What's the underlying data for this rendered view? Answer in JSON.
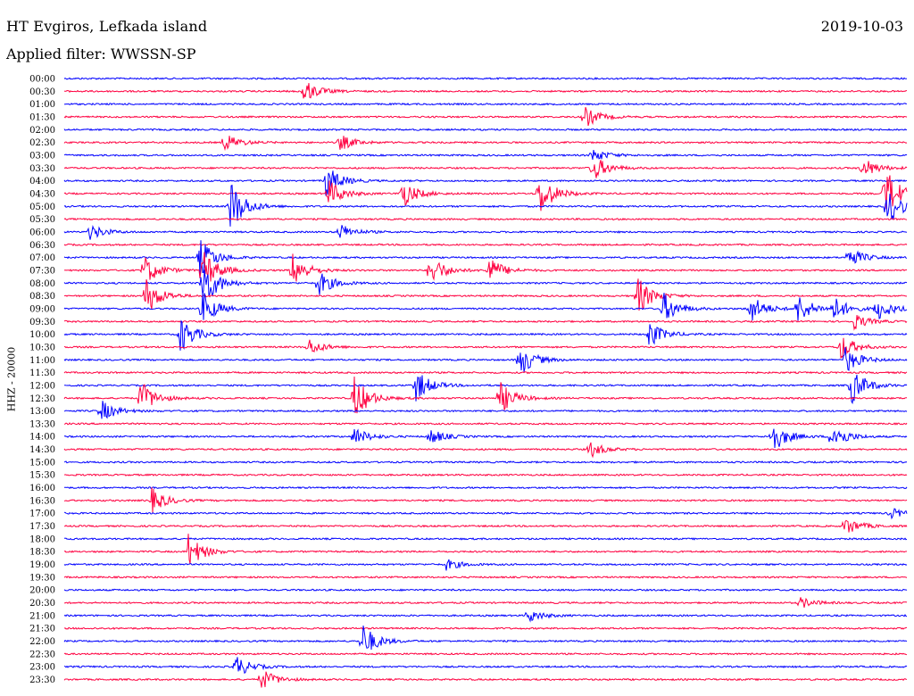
{
  "header": {
    "station": "HT Evgiros, Lefkada island",
    "date": "2019-10-03",
    "filter": "Applied filter: WWSSN-SP"
  },
  "chart_data": {
    "type": "line",
    "ylabel": "HHZ - 20000",
    "colors": [
      "#0000ff",
      "#ff0040"
    ],
    "rows": [
      "00:00",
      "00:30",
      "01:00",
      "01:30",
      "02:00",
      "02:30",
      "03:00",
      "03:30",
      "04:00",
      "04:30",
      "05:00",
      "05:30",
      "06:00",
      "06:30",
      "07:00",
      "07:30",
      "08:00",
      "08:30",
      "09:00",
      "09:30",
      "10:00",
      "10:30",
      "11:00",
      "11:30",
      "12:00",
      "12:30",
      "13:00",
      "13:30",
      "14:00",
      "14:30",
      "15:00",
      "15:30",
      "16:00",
      "16:30",
      "17:00",
      "17:30",
      "18:00",
      "18:30",
      "19:00",
      "19:30",
      "20:00",
      "20:30",
      "21:00",
      "21:30",
      "22:00",
      "22:30",
      "23:00",
      "23:30"
    ],
    "x_range_minutes": [
      0,
      30
    ],
    "events": [
      {
        "row": 1,
        "minute": 8.5,
        "amp": 0.9
      },
      {
        "row": 3,
        "minute": 18.5,
        "amp": 0.8
      },
      {
        "row": 5,
        "minute": 5.7,
        "amp": 0.7
      },
      {
        "row": 5,
        "minute": 9.8,
        "amp": 0.6
      },
      {
        "row": 6,
        "minute": 18.8,
        "amp": 0.5
      },
      {
        "row": 7,
        "minute": 18.8,
        "amp": 1.0
      },
      {
        "row": 7,
        "minute": 28.4,
        "amp": 0.8
      },
      {
        "row": 8,
        "minute": 9.3,
        "amp": 1.2
      },
      {
        "row": 9,
        "minute": 9.4,
        "amp": 1.0
      },
      {
        "row": 9,
        "minute": 12.0,
        "amp": 1.1
      },
      {
        "row": 9,
        "minute": 16.9,
        "amp": 1.6
      },
      {
        "row": 9,
        "minute": 29.2,
        "amp": 2.0
      },
      {
        "row": 10,
        "minute": 5.9,
        "amp": 2.0
      },
      {
        "row": 10,
        "minute": 29.3,
        "amp": 1.4
      },
      {
        "row": 12,
        "minute": 0.9,
        "amp": 0.6
      },
      {
        "row": 12,
        "minute": 9.8,
        "amp": 0.6
      },
      {
        "row": 14,
        "minute": 4.8,
        "amp": 1.5
      },
      {
        "row": 14,
        "minute": 27.9,
        "amp": 0.8
      },
      {
        "row": 15,
        "minute": 2.8,
        "amp": 1.2
      },
      {
        "row": 15,
        "minute": 4.9,
        "amp": 1.6
      },
      {
        "row": 15,
        "minute": 8.1,
        "amp": 1.3
      },
      {
        "row": 15,
        "minute": 13.0,
        "amp": 1.2
      },
      {
        "row": 15,
        "minute": 15.1,
        "amp": 1.0
      },
      {
        "row": 16,
        "minute": 4.9,
        "amp": 2.0
      },
      {
        "row": 16,
        "minute": 9.0,
        "amp": 1.0
      },
      {
        "row": 17,
        "minute": 2.9,
        "amp": 1.4
      },
      {
        "row": 17,
        "minute": 20.4,
        "amp": 1.4
      },
      {
        "row": 18,
        "minute": 4.9,
        "amp": 1.3
      },
      {
        "row": 18,
        "minute": 21.3,
        "amp": 1.2
      },
      {
        "row": 18,
        "minute": 24.4,
        "amp": 1.1
      },
      {
        "row": 18,
        "minute": 26.1,
        "amp": 1.1
      },
      {
        "row": 18,
        "minute": 27.3,
        "amp": 1.0
      },
      {
        "row": 18,
        "minute": 28.9,
        "amp": 0.9
      },
      {
        "row": 19,
        "minute": 28.1,
        "amp": 0.6
      },
      {
        "row": 20,
        "minute": 4.1,
        "amp": 1.4
      },
      {
        "row": 20,
        "minute": 20.8,
        "amp": 1.0
      },
      {
        "row": 21,
        "minute": 8.7,
        "amp": 0.6
      },
      {
        "row": 21,
        "minute": 27.6,
        "amp": 1.0
      },
      {
        "row": 22,
        "minute": 16.2,
        "amp": 1.2
      },
      {
        "row": 22,
        "minute": 27.8,
        "amp": 1.0
      },
      {
        "row": 24,
        "minute": 12.5,
        "amp": 1.2
      },
      {
        "row": 24,
        "minute": 28.0,
        "amp": 1.4
      },
      {
        "row": 25,
        "minute": 2.7,
        "amp": 1.3
      },
      {
        "row": 25,
        "minute": 10.3,
        "amp": 1.7
      },
      {
        "row": 25,
        "minute": 15.5,
        "amp": 1.2
      },
      {
        "row": 26,
        "minute": 1.3,
        "amp": 0.8
      },
      {
        "row": 28,
        "minute": 10.3,
        "amp": 0.7
      },
      {
        "row": 28,
        "minute": 13.0,
        "amp": 0.6
      },
      {
        "row": 28,
        "minute": 25.2,
        "amp": 1.2
      },
      {
        "row": 28,
        "minute": 27.3,
        "amp": 1.1
      },
      {
        "row": 29,
        "minute": 18.7,
        "amp": 0.6
      },
      {
        "row": 33,
        "minute": 3.1,
        "amp": 0.9
      },
      {
        "row": 34,
        "minute": 29.4,
        "amp": 0.4
      },
      {
        "row": 35,
        "minute": 27.8,
        "amp": 0.7
      },
      {
        "row": 37,
        "minute": 4.4,
        "amp": 1.3
      },
      {
        "row": 38,
        "minute": 13.6,
        "amp": 0.4
      },
      {
        "row": 41,
        "minute": 26.2,
        "amp": 0.4
      },
      {
        "row": 42,
        "minute": 16.5,
        "amp": 0.5
      },
      {
        "row": 44,
        "minute": 10.6,
        "amp": 1.3
      },
      {
        "row": 46,
        "minute": 6.1,
        "amp": 0.8
      },
      {
        "row": 47,
        "minute": 7.0,
        "amp": 0.8
      }
    ]
  }
}
